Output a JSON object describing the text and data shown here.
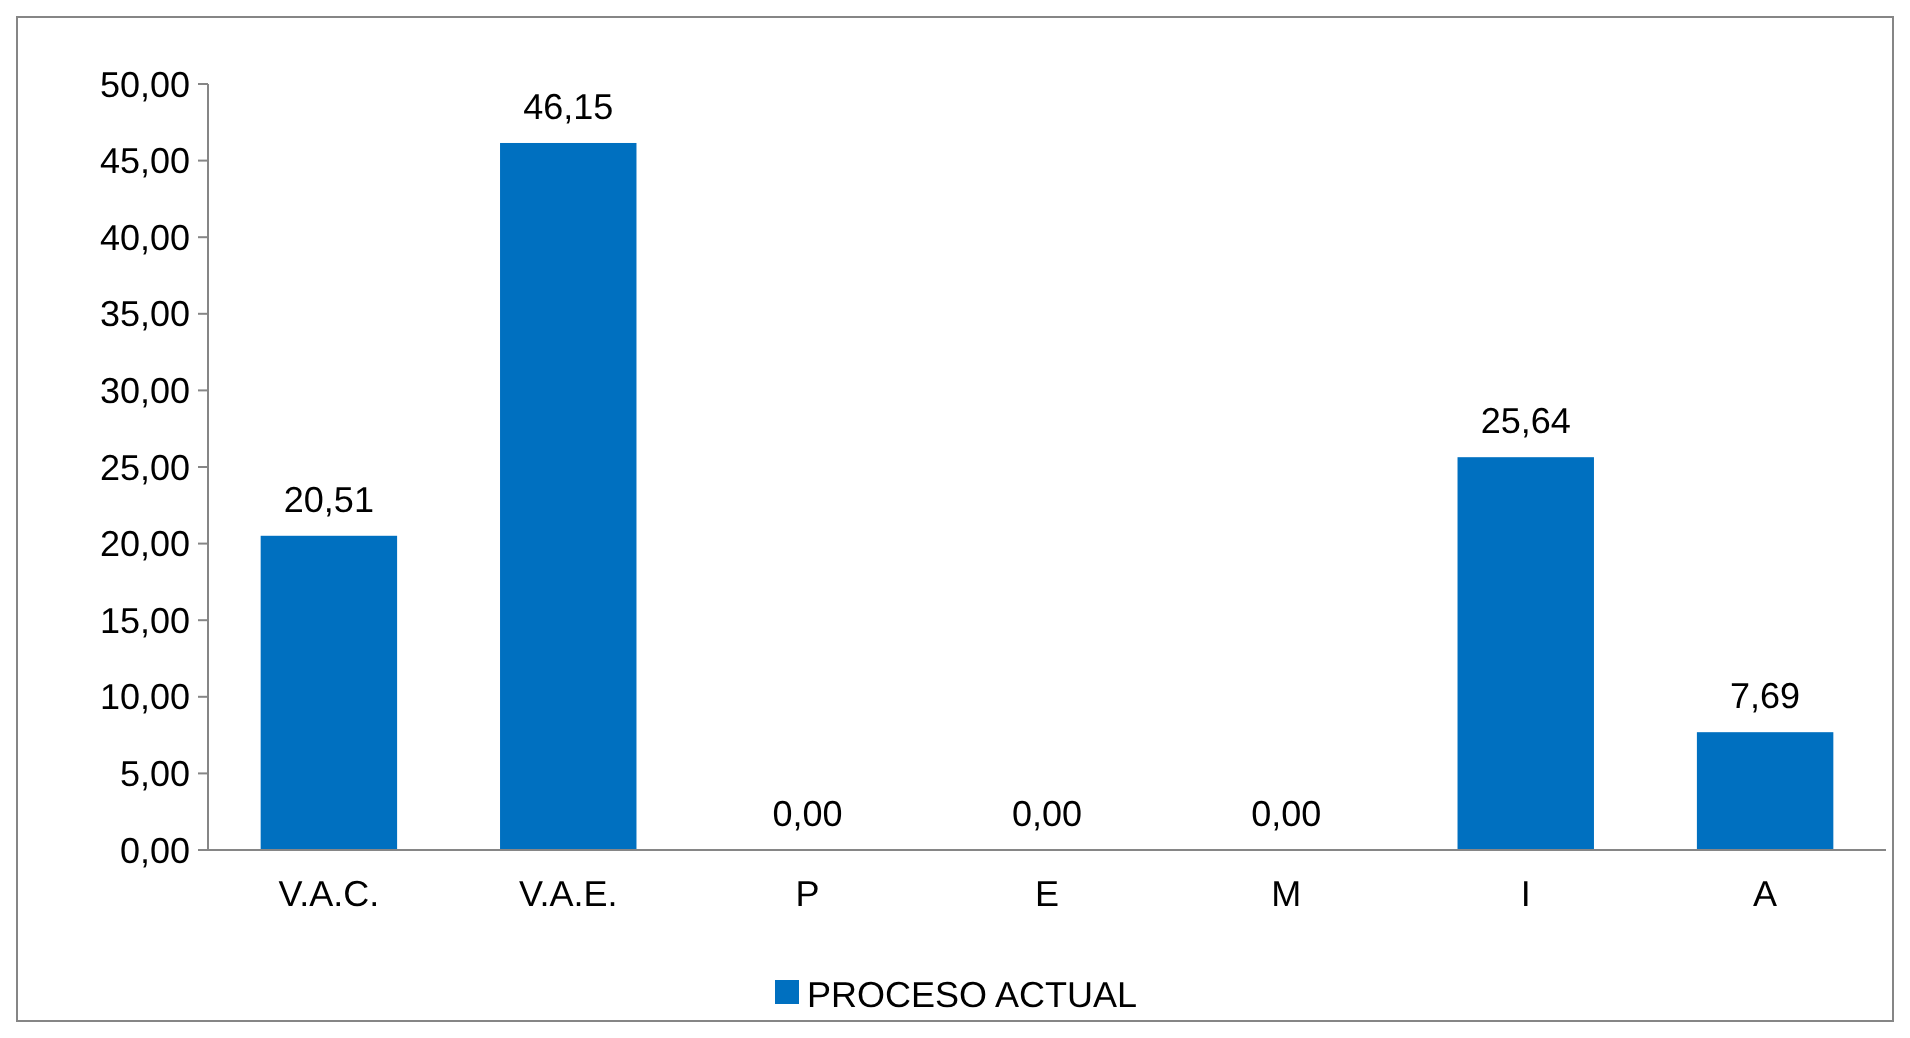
{
  "chart_data": {
    "type": "bar",
    "categories": [
      "V.A.C.",
      "V.A.E.",
      "P",
      "E",
      "M",
      "I",
      "A"
    ],
    "series": [
      {
        "name": "PROCESO ACTUAL",
        "color": "#0070c0",
        "values": [
          20.51,
          46.15,
          0,
          0,
          0,
          25.64,
          7.69
        ]
      }
    ],
    "value_labels": [
      "20,51",
      "46,15",
      "0,00",
      "0,00",
      "0,00",
      "25,64",
      "7,69"
    ],
    "ylim": [
      0,
      50
    ],
    "yticks": [
      {
        "value": 0,
        "label": "0,00"
      },
      {
        "value": 5,
        "label": "5,00"
      },
      {
        "value": 10,
        "label": "10,00"
      },
      {
        "value": 15,
        "label": "15,00"
      },
      {
        "value": 20,
        "label": "20,00"
      },
      {
        "value": 25,
        "label": "25,00"
      },
      {
        "value": 30,
        "label": "30,00"
      },
      {
        "value": 35,
        "label": "35,00"
      },
      {
        "value": 40,
        "label": "40,00"
      },
      {
        "value": 45,
        "label": "45,00"
      },
      {
        "value": 50,
        "label": "50,00"
      }
    ],
    "grid": false,
    "legend": "bottom"
  }
}
